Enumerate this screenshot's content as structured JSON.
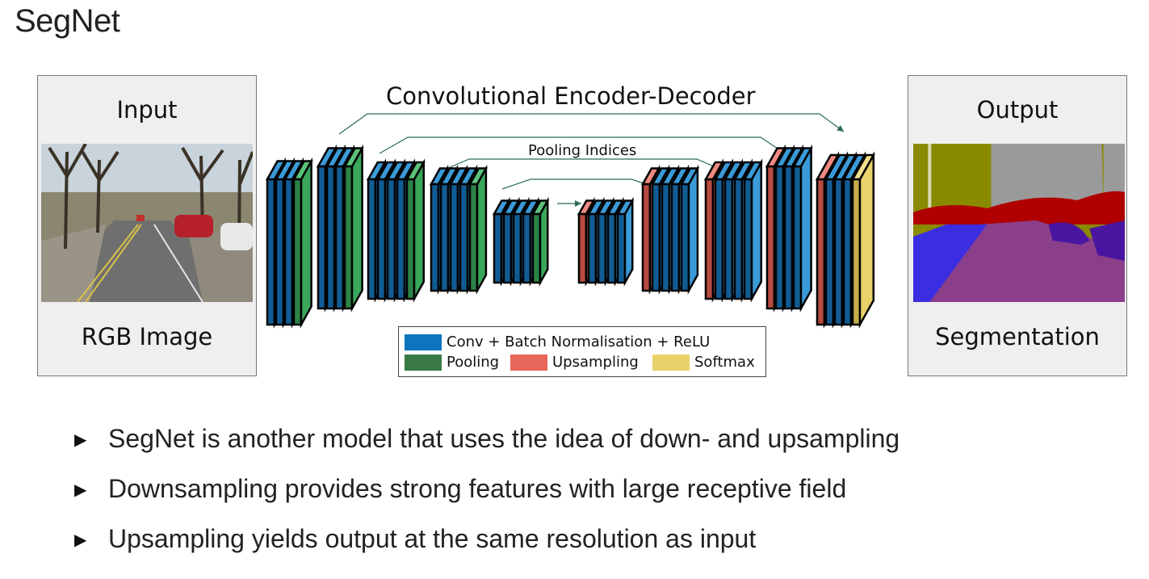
{
  "title": "SegNet",
  "input_panel": {
    "top_label": "Input",
    "bottom_label": "RGB Image"
  },
  "output_panel": {
    "top_label": "Output",
    "bottom_label": "Segmentation"
  },
  "diagram": {
    "title": "Convolutional Encoder-Decoder",
    "pooling_label": "Pooling Indices",
    "colors": {
      "conv": "#1f77b4",
      "pooling": "#3aa75a",
      "upsampling": "#e8655a",
      "softmax": "#ead26a"
    }
  },
  "legend": {
    "conv": "Conv + Batch Normalisation + ReLU",
    "pooling": "Pooling",
    "upsampling": "Upsampling",
    "softmax": "Softmax",
    "colors": {
      "conv": "#0d75bd",
      "pooling": "#3a7a45",
      "upsampling": "#e8655a",
      "softmax": "#ead26a"
    }
  },
  "bullets": [
    {
      "text": "SegNet is another model that uses the idea of down- and upsampling"
    },
    {
      "text": "Downsampling provides strong features with large receptive field"
    },
    {
      "text": "Upsampling yields output at the same resolution as input"
    }
  ]
}
